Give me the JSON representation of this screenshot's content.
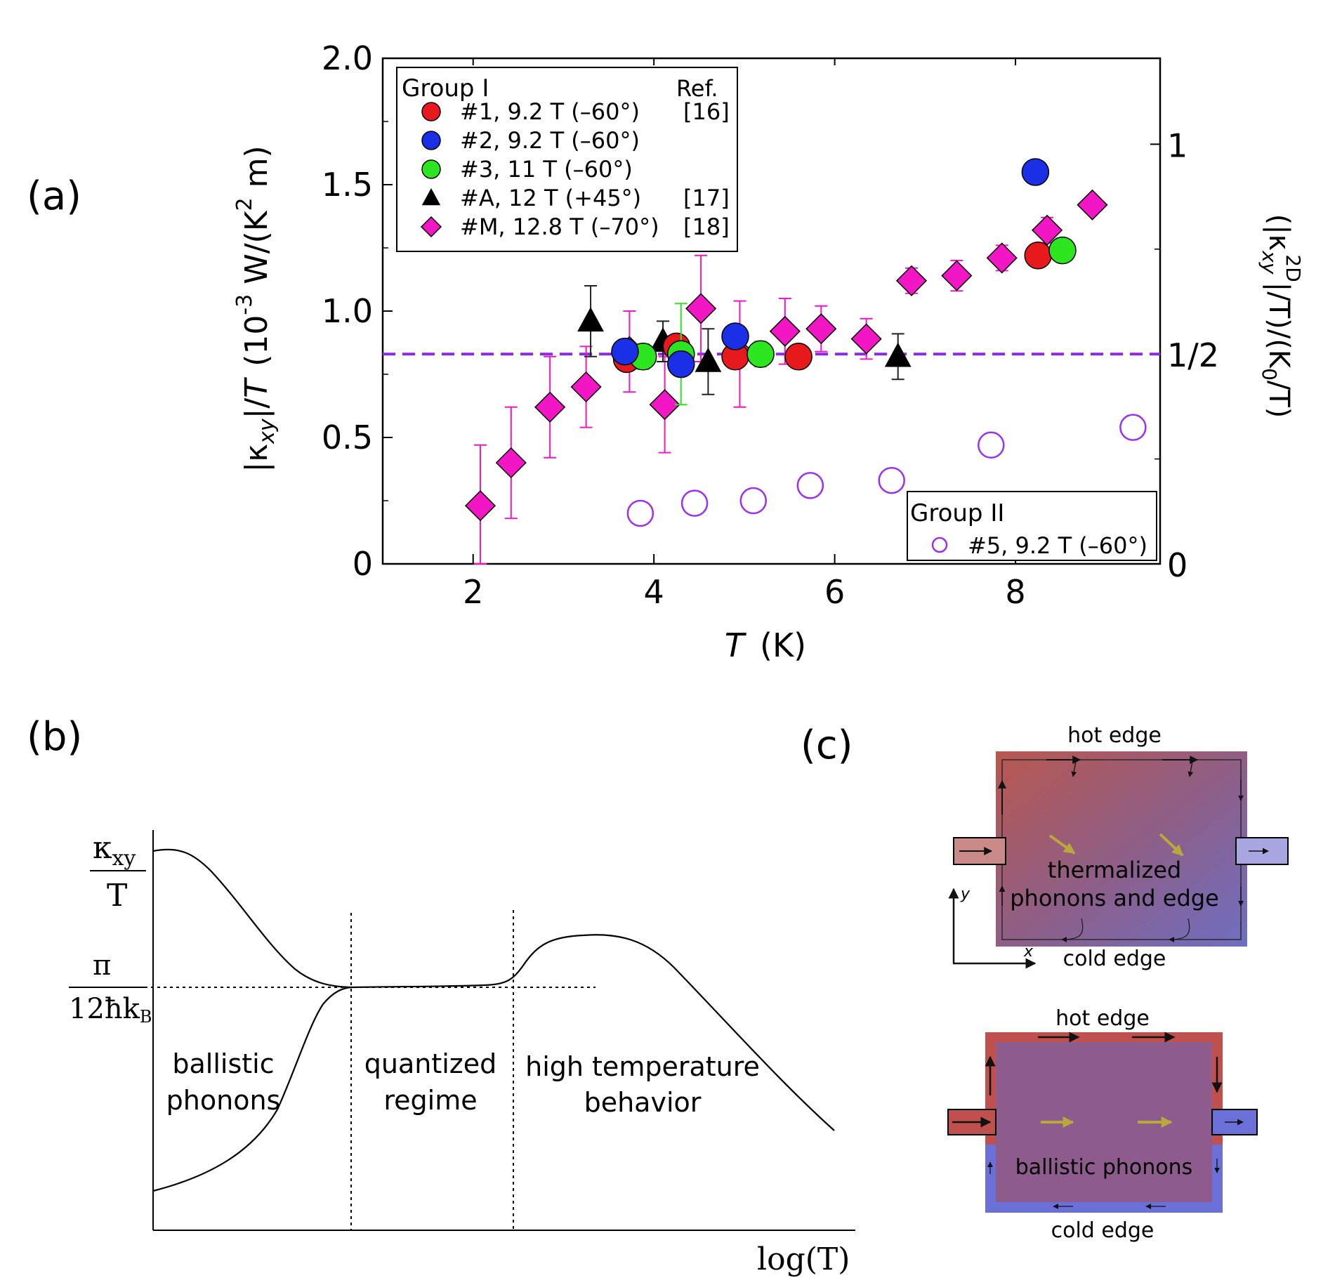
{
  "panel_labels": {
    "a": "(a)",
    "b": "(b)",
    "c": "(c)"
  },
  "colors": {
    "red": "#e8191d",
    "blue": "#1a2fe6",
    "green": "#2ee61f",
    "black": "#000000",
    "magenta": "#f216c4",
    "purple_open": "#9b30f0",
    "dashed_line": "#8a2be2",
    "hot": "#c0504d",
    "cold": "#7070d0",
    "interior": "#8e5e8e",
    "arrow_yellow": "#b5a640"
  },
  "panel_a": {
    "xlabel_italic": "T",
    "xlabel_unit": "(K)",
    "ylabel_left": {
      "kappa_sym": "|κ",
      "kappa_sub": "xy",
      "after_sub": "|/",
      "T_sym": "T",
      "unit_pre": "(10",
      "exp1": "-3",
      "unit_mid": " W/(K",
      "exp2": "2",
      "unit_post": " m)"
    },
    "ylabel_right": {
      "open1": "(|κ",
      "sub_xy": "xy",
      "sup_2d": "2D",
      "mid": "|/T)/(K",
      "sub_0": "0",
      "end": "/T)"
    },
    "right_ticks": [
      {
        "label": "0",
        "value": 0
      },
      {
        "label": "1/2",
        "value": 0.5
      },
      {
        "label": "1",
        "value": 1
      }
    ],
    "legend_group1": {
      "title": "Group I",
      "ref_header": "Ref.",
      "entries": [
        {
          "marker": "circle",
          "color": "red",
          "label": "#1, 9.2 T (–60°)",
          "ref": "[16]"
        },
        {
          "marker": "circle",
          "color": "blue",
          "label": "#2, 9.2 T (–60°)",
          "ref": ""
        },
        {
          "marker": "circle",
          "color": "green",
          "label": "#3, 11 T (–60°)",
          "ref": ""
        },
        {
          "marker": "triangle",
          "color": "black",
          "label": "#A, 12 T (+45°)",
          "ref": "[17]"
        },
        {
          "marker": "diamond",
          "color": "magenta",
          "label": "#M, 12.8 T (–70°)",
          "ref": "[18]"
        }
      ]
    },
    "legend_group2": {
      "title": "Group II",
      "entries": [
        {
          "marker": "open-circle",
          "color": "purple_open",
          "label": "#5, 9.2 T (–60°)"
        }
      ]
    }
  },
  "chart_data": [
    {
      "id": "a",
      "type": "scatter",
      "title": "",
      "xlabel": "T (K)",
      "ylabel": "|κxy|/T (10^-3 W/(K^2 m))",
      "ylabel_right": "(|κxy^2D|/T)/(K0/T)",
      "xlim": [
        1,
        9.6
      ],
      "ylim": [
        0,
        2.0
      ],
      "xticks": [
        2,
        4,
        6,
        8
      ],
      "yticks": [
        0,
        0.5,
        1.0,
        1.5,
        2.0
      ],
      "ytick_labels": [
        "0",
        "0.5",
        "1.0",
        "1.5",
        "2.0"
      ],
      "reference_line": {
        "y": 0.83,
        "style": "dashed",
        "right_axis_label": "1/2"
      },
      "right_axis_scale": {
        "value_0": 0,
        "value_1": 1.66
      },
      "series": [
        {
          "name": "#1, 9.2 T (–60°)",
          "marker": "circle",
          "color": "red",
          "x": [
            3.7,
            4.25,
            4.9,
            5.6,
            8.25
          ],
          "y": [
            0.81,
            0.86,
            0.82,
            0.82,
            1.22
          ]
        },
        {
          "name": "#2, 9.2 T (–60°)",
          "marker": "circle",
          "color": "blue",
          "x": [
            3.68,
            4.3,
            4.9,
            8.22
          ],
          "y": [
            0.84,
            0.79,
            0.9,
            1.55
          ]
        },
        {
          "name": "#3, 11 T (–60°)",
          "marker": "circle",
          "color": "green",
          "x": [
            3.88,
            4.3,
            5.18,
            8.52
          ],
          "y": [
            0.82,
            0.83,
            0.83,
            1.24
          ],
          "yerr": [
            0.05,
            0.2,
            0.05,
            0
          ]
        },
        {
          "name": "#A, 12 T (+45°)",
          "marker": "triangle",
          "color": "black",
          "x": [
            3.3,
            4.1,
            4.6,
            6.7
          ],
          "y": [
            0.96,
            0.88,
            0.8,
            0.82
          ],
          "yerr": [
            0.14,
            0.08,
            0.13,
            0.09
          ]
        },
        {
          "name": "#M, 12.8 T (–70°)",
          "marker": "diamond",
          "color": "magenta",
          "x": [
            2.08,
            2.42,
            2.85,
            3.25,
            3.73,
            4.12,
            4.52,
            4.95,
            5.45,
            5.85,
            6.35,
            6.85,
            7.35,
            7.85,
            8.35,
            8.85
          ],
          "y": [
            0.23,
            0.4,
            0.62,
            0.7,
            0.84,
            0.63,
            1.01,
            0.83,
            0.92,
            0.93,
            0.89,
            1.12,
            1.14,
            1.21,
            1.32,
            1.42
          ],
          "yerr": [
            0.24,
            0.22,
            0.2,
            0.16,
            0.16,
            0.19,
            0.21,
            0.21,
            0.13,
            0.09,
            0.08,
            0.05,
            0.06,
            0.05,
            0.05,
            0
          ]
        },
        {
          "name": "#5, 9.2 T (–60°)",
          "marker": "open-circle",
          "color": "purple_open",
          "x": [
            3.85,
            4.45,
            5.1,
            5.73,
            6.63,
            7.73,
            9.3
          ],
          "y": [
            0.2,
            0.24,
            0.25,
            0.31,
            0.33,
            0.47,
            0.54
          ]
        }
      ]
    },
    {
      "id": "b",
      "type": "line",
      "title": "",
      "xlabel": "log(T)",
      "ylabel": "κxy / T",
      "reference_value_label": "π / 12ħkB",
      "regions": [
        "ballistic phonons",
        "quantized regime",
        "high temperature behavior"
      ],
      "description": "schematic curves approaching the quantized value"
    }
  ],
  "panel_b": {
    "ylabel_num": "κ",
    "ylabel_sub": "xy",
    "ylabel_den": "T",
    "ref_num": "π",
    "ref_den_pre": "12ħk",
    "ref_den_sub": "B",
    "xlabel": "log(T)",
    "regions": [
      {
        "line1": "ballistic",
        "line2": "phonons"
      },
      {
        "line1": "quantized",
        "line2": "regime"
      },
      {
        "line1": "high temperature",
        "line2": "behavior"
      }
    ]
  },
  "panel_c": {
    "top": {
      "hot_label": "hot edge",
      "cold_label": "cold edge",
      "center_line1": "thermalized",
      "center_line2": "phonons and edge",
      "axis_y": "y",
      "axis_x": "x"
    },
    "bottom": {
      "hot_label": "hot edge",
      "cold_label": "cold edge",
      "center_label": "ballistic phonons"
    }
  }
}
